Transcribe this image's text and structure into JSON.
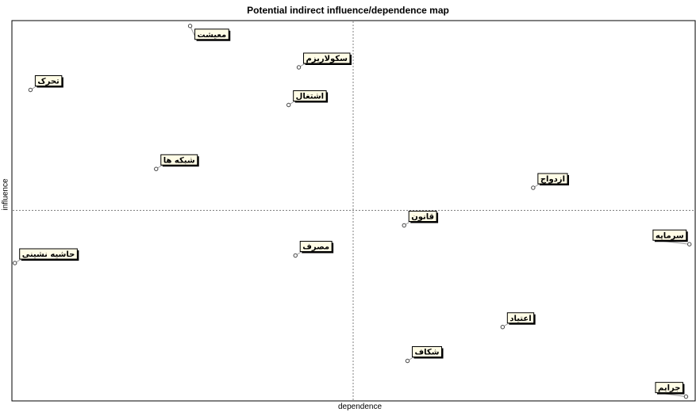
{
  "chart_data": {
    "type": "scatter",
    "title": "Potential indirect influence/dependence map",
    "xlabel": "dependence",
    "ylabel": "influence",
    "xlim": [
      0,
      100
    ],
    "ylim": [
      0,
      100
    ],
    "quadrant_lines": {
      "x": 50,
      "y": 50
    },
    "points": [
      {
        "label": "معیشت",
        "x": 26,
        "y": 99
      },
      {
        "label": "سکولاریزم",
        "x": 42,
        "y": 88
      },
      {
        "label": "تحرک",
        "x": 2.5,
        "y": 82
      },
      {
        "label": "اشتغال",
        "x": 40.5,
        "y": 78
      },
      {
        "label": "شبکه ها",
        "x": 21,
        "y": 61
      },
      {
        "label": "ازدواج",
        "x": 76.5,
        "y": 56
      },
      {
        "label": "قانون",
        "x": 57.5,
        "y": 46
      },
      {
        "label": "سرمایه",
        "x": 99.5,
        "y": 41
      },
      {
        "label": "حاشیه نشینی",
        "x": 0.2,
        "y": 36
      },
      {
        "label": "مصرف",
        "x": 41.5,
        "y": 38
      },
      {
        "label": "اعتیاد",
        "x": 72,
        "y": 19
      },
      {
        "label": "شکاف",
        "x": 58,
        "y": 10
      },
      {
        "label": "جرایم",
        "x": 99,
        "y": 0.5
      }
    ]
  }
}
